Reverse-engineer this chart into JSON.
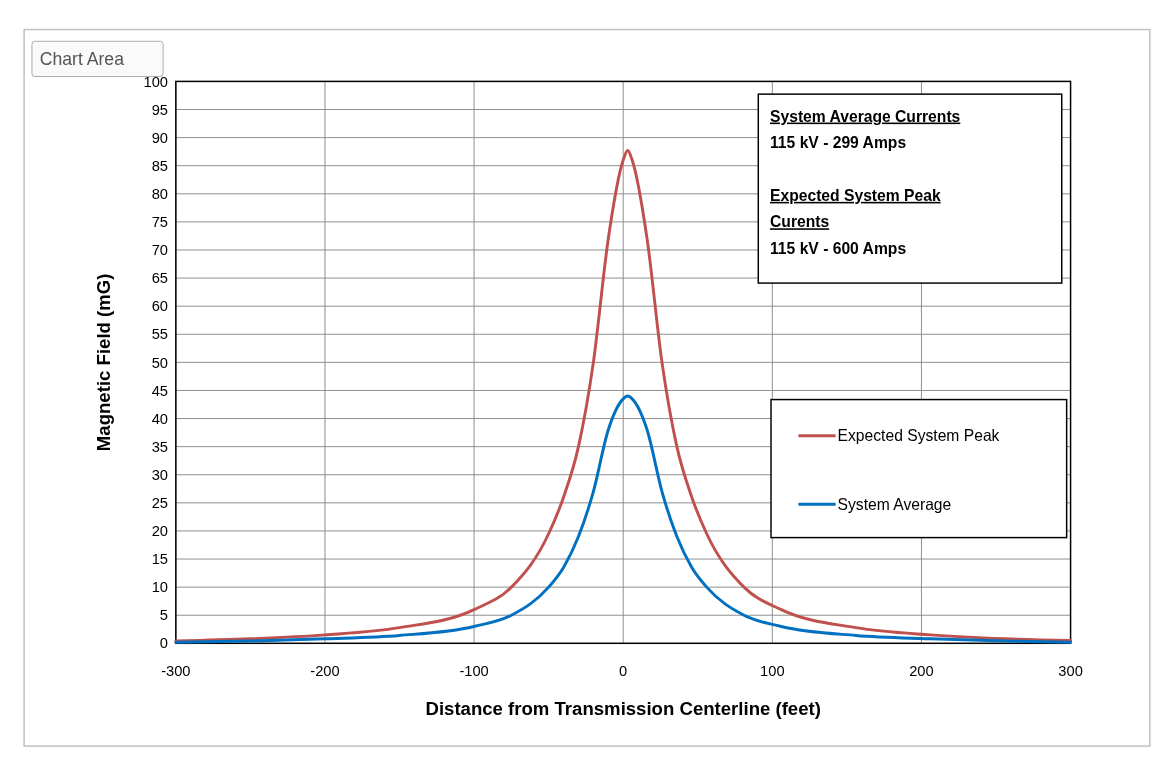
{
  "chart_data": {
    "type": "line",
    "xlabel": "Distance from Transmission Centerline (feet)",
    "ylabel": "Magnetic Field (mG)",
    "xlim": [
      -300,
      300
    ],
    "xticks": [
      -300,
      -200,
      -100,
      0,
      100,
      200,
      300
    ],
    "ylim": [
      0,
      100
    ],
    "yticks": [
      0,
      5,
      10,
      15,
      20,
      25,
      30,
      35,
      40,
      45,
      50,
      55,
      60,
      65,
      70,
      75,
      80,
      85,
      90,
      95,
      100
    ],
    "grid": true,
    "legend": "right",
    "line_style": "solid",
    "marker": "none",
    "annotations": [
      "System Average Currents",
      "115 kV - 299 Amps",
      "Expected System Peak",
      "Curents",
      "115 kV - 600 Amps",
      "Chart Area"
    ],
    "series": [
      {
        "name": "Expected System Peak",
        "color": "#c0504d",
        "x": [
          -300,
          -250,
          -200,
          -150,
          -100,
          -75,
          -50,
          -40,
          -30,
          -20,
          -10,
          0,
          3,
          6,
          16,
          26,
          36,
          46,
          56,
          81,
          106,
          156,
          206,
          256,
          300
        ],
        "values": [
          0.4,
          0.8,
          1.5,
          2.8,
          6,
          10,
          19.5,
          26,
          35,
          50,
          72,
          86,
          87.7,
          86,
          72,
          50,
          35,
          26,
          19.5,
          10,
          6,
          2.8,
          1.5,
          0.8,
          0.5
        ]
      },
      {
        "name": "System Average",
        "color": "#0070c0",
        "x": [
          -300,
          -250,
          -200,
          -150,
          -100,
          -75,
          -50,
          -40,
          -30,
          -20,
          -10,
          0,
          3,
          6,
          16,
          26,
          36,
          46,
          56,
          81,
          106,
          156,
          206,
          256,
          300
        ],
        "values": [
          0.2,
          0.4,
          0.8,
          1.4,
          3,
          5,
          10,
          13.5,
          19,
          27,
          38,
          43.5,
          44,
          43.5,
          38,
          27,
          19,
          13.5,
          10,
          5,
          3,
          1.4,
          0.8,
          0.4,
          0.2
        ]
      }
    ]
  }
}
